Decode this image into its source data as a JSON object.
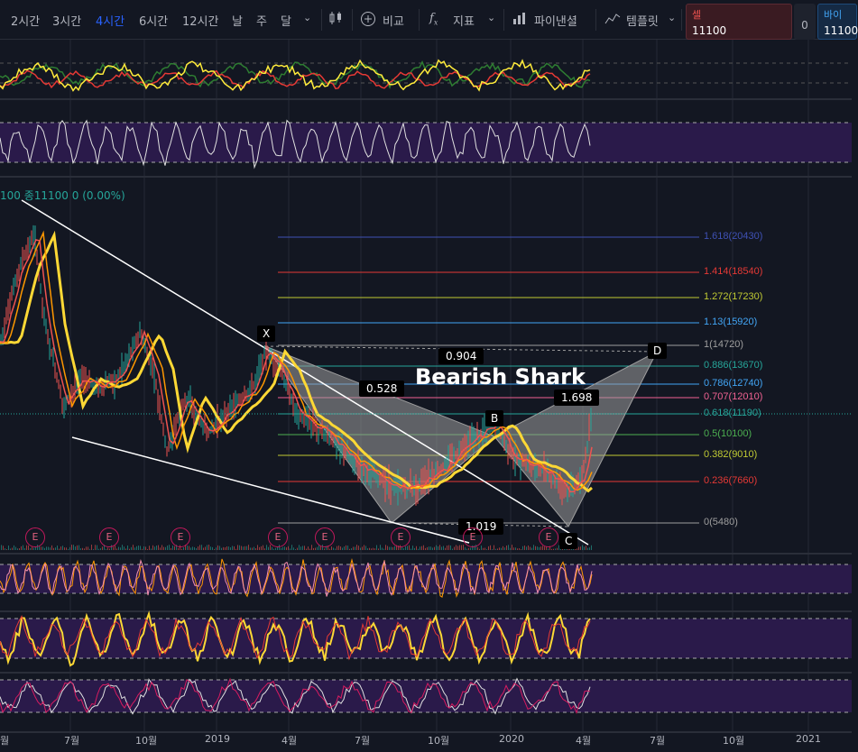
{
  "toolbar": {
    "intervals": [
      "2시간",
      "3시간",
      "4시간",
      "6시간",
      "12시간",
      "날",
      "주",
      "달"
    ],
    "active_interval": "4시간",
    "compare_label": "비교",
    "indicators_label": "지표",
    "layout_label": "파이낸셜",
    "template_label": "템플릿"
  },
  "trade": {
    "sell_label": "셀",
    "sell_price": "11100",
    "spread": "0",
    "buy_label": "바이",
    "buy_price": "11100"
  },
  "legend": {
    "text": "100 종11100 0 (0.00%)"
  },
  "pattern": {
    "title": "Bearish Shark",
    "points": [
      "X",
      "B",
      "C",
      "D"
    ],
    "ratios": [
      "0.904",
      "0.528",
      "1.698",
      "1.019"
    ]
  },
  "fib_levels": [
    {
      "label": "1.618(20430)",
      "color": "#3f51b5"
    },
    {
      "label": "1.414(18540)",
      "color": "#e53935"
    },
    {
      "label": "1.272(17230)",
      "color": "#c0ca33"
    },
    {
      "label": "1.13(15920)",
      "color": "#42a5f5"
    },
    {
      "label": "1(14720)",
      "color": "#9e9e9e"
    },
    {
      "label": "0.886(13670)",
      "color": "#26a69a"
    },
    {
      "label": "0.786(12740)",
      "color": "#42a5f5"
    },
    {
      "label": "0.707(12010)",
      "color": "#f06292"
    },
    {
      "label": "0.618(11190)",
      "color": "#26a69a"
    },
    {
      "label": "0.5(10100)",
      "color": "#4caf50"
    },
    {
      "label": "0.382(9010)",
      "color": "#c0ca33"
    },
    {
      "label": "0.236(7660)",
      "color": "#e53935"
    },
    {
      "label": "0(5480)",
      "color": "#9e9e9e"
    }
  ],
  "earnings_badges": [
    "E",
    "E",
    "E",
    "E",
    "E",
    "E",
    "E",
    "E"
  ],
  "time_axis": [
    "월",
    "7월",
    "10월",
    "2019",
    "4월",
    "7월",
    "10월",
    "2020",
    "4월",
    "7월",
    "10월",
    "2021"
  ]
}
